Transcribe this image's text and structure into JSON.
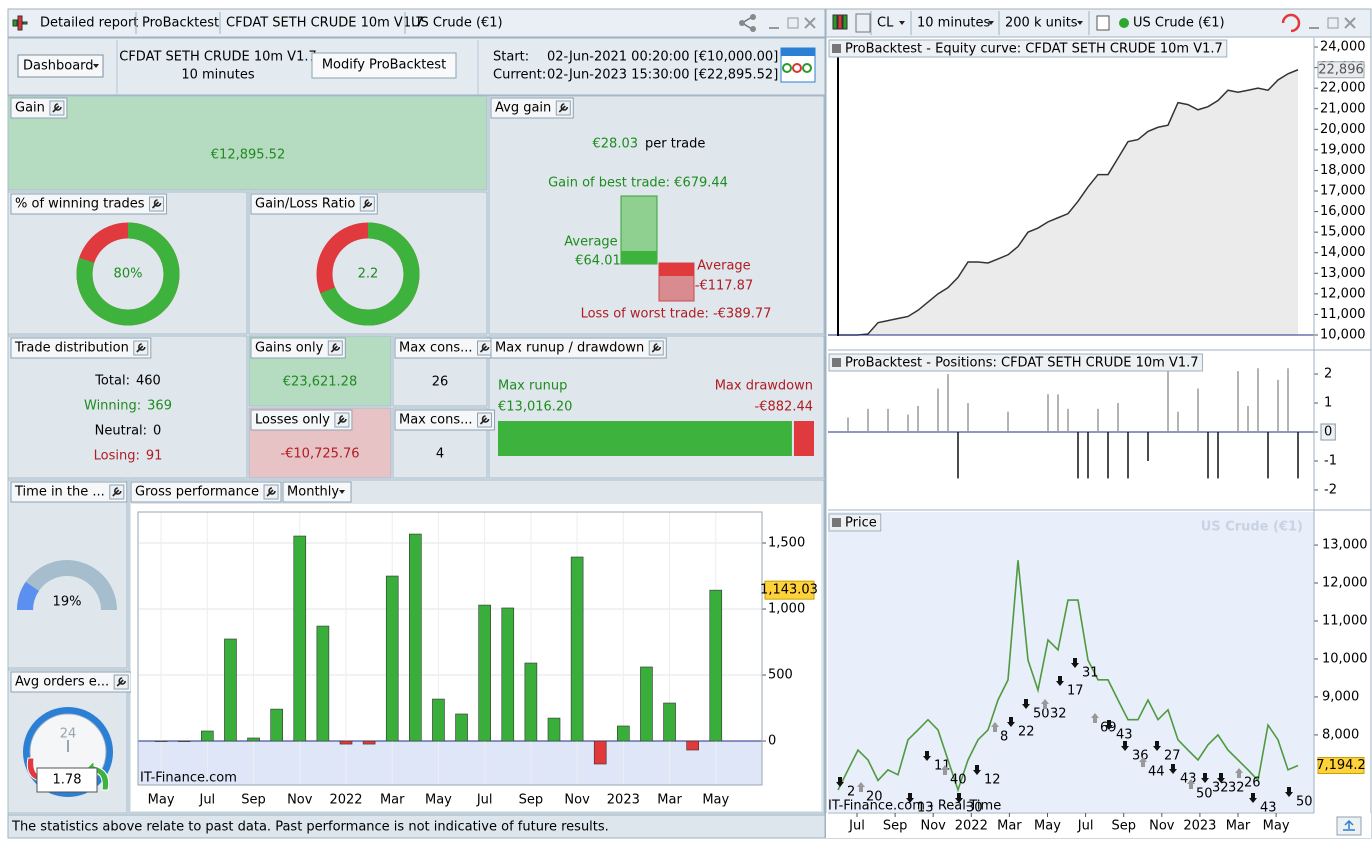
{
  "left_window": {
    "tabs": [
      "Detailed report",
      "ProBacktest",
      "CFDAT SETH CRUDE 10m V1.7",
      "US Crude (€1)"
    ]
  },
  "toolbar": {
    "dashboard": "Dashboard",
    "system": "CFDAT SETH CRUDE 10m V1.7",
    "timeframe": "10 minutes",
    "modify": "Modify ProBacktest",
    "start_label": "Start:",
    "start_value": "02-Jun-2021 00:20:00  [€10,000.00]",
    "current_label": "Current:",
    "current_value": "02-Jun-2023 15:30:00  [€22,895.52]"
  },
  "gain": {
    "title": "Gain",
    "value": "€12,895.52"
  },
  "avg_gain": {
    "title": "Avg gain",
    "value": "€28.03",
    "unit": "per trade",
    "best": "Gain of best trade: €679.44",
    "avg_win_label": "Average",
    "avg_win": "€64.01",
    "avg_loss_label": "Average",
    "avg_loss": "-€117.87",
    "worst": "Loss of worst trade: -€389.77"
  },
  "winning_trades": {
    "title": "% of winning trades",
    "value": 80,
    "label": "80%"
  },
  "gain_loss_ratio": {
    "title": "Gain/Loss Ratio",
    "value": 2.2
  },
  "trade_distribution": {
    "title": "Trade distribution",
    "rows": [
      {
        "label": "Total:",
        "value": 460,
        "color": "#000000"
      },
      {
        "label": "Winning:",
        "value": 369,
        "color": "#1e8c1e"
      },
      {
        "label": "Neutral:",
        "value": 0,
        "color": "#000000"
      },
      {
        "label": "Losing:",
        "value": 91,
        "color": "#b01c22"
      }
    ]
  },
  "gains_only": {
    "title": "Gains only",
    "value": "€23,621.28"
  },
  "losses_only": {
    "title": "Losses only",
    "value": "-€10,725.76"
  },
  "max_consecutive_wins": {
    "title": "Max cons...",
    "value": 26
  },
  "max_consecutive_losses": {
    "title": "Max cons...",
    "value": 4
  },
  "runup_drawdown": {
    "title": "Max runup / drawdown",
    "runup_label": "Max runup",
    "runup": {
      "value": 13016.2,
      "label": "€13,016.20"
    },
    "drawdown_label": "Max drawdown",
    "drawdown": {
      "value": -882.44,
      "label": "-€882.44"
    }
  },
  "time_in_market": {
    "title": "Time in the ...",
    "value": 19,
    "label": "19%"
  },
  "avg_orders": {
    "title": "Avg orders e...",
    "clock_label": "24",
    "value": 1.78
  },
  "gross_performance": {
    "title": "Gross performance",
    "period": "Monthly",
    "type": "bar",
    "categories": [
      "May",
      null,
      "Jul",
      null,
      "Sep",
      null,
      "Nov",
      null,
      "2022",
      null,
      "Mar",
      null,
      "May",
      null,
      "Jul",
      null,
      "Sep",
      null,
      "Nov",
      null,
      "2023",
      null,
      "Mar",
      null,
      "May"
    ],
    "values": [
      0,
      -4,
      76,
      773,
      23,
      242,
      1553,
      871,
      -23,
      -23,
      1250,
      1568,
      318,
      205,
      1030,
      1008,
      591,
      174,
      1394,
      -174,
      114,
      561,
      288,
      -68,
      1143.03
    ],
    "last_label": "1,143.03",
    "colors": {
      "positive": "#3aae3a",
      "negative": "#e2383c"
    },
    "ylim": [
      -333,
      1735
    ],
    "yticks": [
      0,
      500,
      {
        "value": 1000,
        "label": "1,000"
      },
      {
        "value": 1500,
        "label": "1,500"
      }
    ],
    "watermark": "IT-Finance.com"
  },
  "disclaimer": "The statistics above relate to past data. Past performance is not indicative of future results.",
  "right_window": {
    "symbol": "CL",
    "timeframe": "10 minutes",
    "units": "200 k units",
    "instrument": "US Crude (€1)"
  },
  "equity_curve": {
    "title": "ProBacktest - Equity curve: CFDAT SETH CRUDE 10m V1.7",
    "type": "line",
    "color": "#333333",
    "values": [
      10000,
      10000,
      10000,
      10050,
      10600,
      10700,
      10800,
      10900,
      11200,
      11600,
      12000,
      12300,
      12800,
      13550,
      13550,
      13500,
      13700,
      13900,
      14300,
      15000,
      15200,
      15500,
      15700,
      15900,
      16500,
      17200,
      17800,
      17800,
      18600,
      19400,
      19500,
      19900,
      20100,
      20200,
      21300,
      21200,
      20950,
      21100,
      21400,
      21900,
      21800,
      21900,
      22000,
      21900,
      22400,
      22700,
      22896
    ],
    "last_label": "22,896",
    "ylim": [
      9270,
      24440
    ],
    "yticks": [
      {
        "value": 10000,
        "label": "10,000"
      },
      {
        "value": 11000,
        "label": "11,000"
      },
      {
        "value": 12000,
        "label": "12,000"
      },
      {
        "value": 13000,
        "label": "13,000"
      },
      {
        "value": 14000,
        "label": "14,000"
      },
      {
        "value": 15000,
        "label": "15,000"
      },
      {
        "value": 16000,
        "label": "16,000"
      },
      {
        "value": 17000,
        "label": "17,000"
      },
      {
        "value": 18000,
        "label": "18,000"
      },
      {
        "value": 19000,
        "label": "19,000"
      },
      {
        "value": 20000,
        "label": "20,000"
      },
      {
        "value": 21000,
        "label": "21,000"
      },
      {
        "value": 22000,
        "label": "22,000"
      },
      {
        "value": 23000,
        "label": "23,000"
      },
      {
        "value": 24000,
        "label": "24,000"
      }
    ]
  },
  "positions": {
    "title": "ProBacktest - Positions: CFDAT SETH CRUDE 10m V1.7",
    "type": "bar",
    "values": [
      0,
      0.5,
      0,
      0.8,
      0,
      0.8,
      0,
      0.6,
      0.9,
      0,
      1.5,
      2,
      -1.6,
      1,
      0,
      0,
      0,
      0.7,
      0,
      0,
      0,
      1.3,
      1.3,
      0.8,
      -1.6,
      -1.6,
      0.8,
      -1.6,
      1,
      -1.6,
      0,
      -1,
      0,
      2.2,
      0.7,
      0,
      1.5,
      -1.6,
      -1.6,
      0,
      2.1,
      0.9,
      2.2,
      -1.6,
      1.8,
      2.2,
      -1.6
    ],
    "ylim": [
      -2.69,
      2.76
    ],
    "yticks": [
      2,
      1,
      0,
      -1,
      -2
    ]
  },
  "price": {
    "title": "Price",
    "watermark": "US Crude (€1)",
    "type": "line",
    "color": "#4f9a3f",
    "values": [
      6550,
      7080,
      7600,
      7340,
      6800,
      7080,
      6950,
      7870,
      8130,
      8400,
      8130,
      7340,
      6550,
      7340,
      7870,
      8130,
      8920,
      9450,
      12600,
      9970,
      9180,
      10500,
      10240,
      11550,
      11550,
      9970,
      9450,
      9450,
      8920,
      8400,
      8400,
      8920,
      8400,
      8660,
      7870,
      7600,
      7340,
      7740,
      8000,
      7600,
      7340,
      7080,
      6800,
      8260,
      7870,
      7080,
      7194.2
    ],
    "last_label": "7,194.2",
    "ylim": [
      5970,
      13870
    ],
    "yticks": [
      {
        "value": 8000,
        "label": "8,000"
      },
      {
        "value": 9000,
        "label": "9,000"
      },
      {
        "value": 10000,
        "label": "10,000"
      },
      {
        "value": 11000,
        "label": "11,000"
      },
      {
        "value": 12000,
        "label": "12,000"
      },
      {
        "value": 13000,
        "label": "13,000"
      }
    ],
    "trade_labels": [
      "2",
      "20",
      "13",
      "11",
      "40",
      "30",
      "12",
      "8",
      "22",
      "50",
      "32",
      "17",
      "31",
      "69",
      "43",
      "36",
      "44",
      "27",
      "43",
      "50",
      "32",
      "32",
      "26",
      "43",
      "50"
    ],
    "footer": "IT-Finance.com - Real-Time"
  },
  "time_axis": [
    "Jul",
    "Sep",
    "Nov",
    "2022",
    "Mar",
    "May",
    "Jul",
    "Sep",
    "Nov",
    "2023",
    "Mar",
    "May"
  ]
}
